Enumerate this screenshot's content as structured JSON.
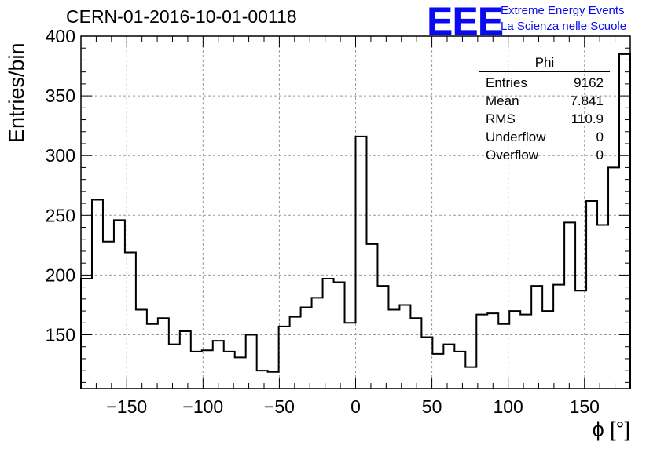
{
  "header": {
    "title": "CERN-01-2016-10-01-00118",
    "logo": "EEE",
    "logo_line1": "Extreme Energy Events",
    "logo_line2": "La Scienza nelle Scuole"
  },
  "stats_box": {
    "title": "Phi",
    "rows": [
      {
        "label": "Entries",
        "value": "9162"
      },
      {
        "label": "Mean",
        "value": "7.841"
      },
      {
        "label": "RMS",
        "value": "110.9"
      },
      {
        "label": "Underflow",
        "value": "0"
      },
      {
        "label": "Overflow",
        "value": "0"
      }
    ]
  },
  "chart_data": {
    "type": "bar",
    "style": "step-histogram",
    "xlabel": "ϕ [°]",
    "ylabel": "Entries/bin",
    "xlim": [
      -180,
      180
    ],
    "ylim": [
      105,
      400
    ],
    "bin_edges": [
      -180,
      -172.8,
      -165.6,
      -158.4,
      -151.2,
      -144,
      -136.8,
      -129.6,
      -122.4,
      -115.2,
      -108,
      -100.8,
      -93.6,
      -86.4,
      -79.2,
      -72,
      -64.8,
      -57.6,
      -50.4,
      -43.2,
      -36,
      -28.8,
      -21.6,
      -14.4,
      -7.2,
      0,
      7.2,
      14.4,
      21.6,
      28.8,
      36,
      43.2,
      50.4,
      57.6,
      64.8,
      72,
      79.2,
      86.4,
      93.6,
      100.8,
      108,
      115.2,
      122.4,
      129.6,
      136.8,
      144,
      151.2,
      158.4,
      165.6,
      172.8,
      180
    ],
    "values": [
      197,
      263,
      228,
      246,
      219,
      171,
      159,
      164,
      142,
      153,
      136,
      137,
      145,
      136,
      131,
      150,
      120,
      119,
      157,
      165,
      173,
      181,
      197,
      194,
      160,
      316,
      226,
      191,
      171,
      175,
      164,
      148,
      134,
      142,
      136,
      123,
      167,
      168,
      159,
      170,
      167,
      191,
      170,
      192,
      244,
      187,
      262,
      242,
      290,
      385
    ],
    "xticks": [
      "−150",
      "−100",
      "−50",
      "0",
      "50",
      "100",
      "150"
    ],
    "xtick_values": [
      -150,
      -100,
      -50,
      0,
      50,
      100,
      150
    ],
    "yticks": [
      "150",
      "200",
      "250",
      "300",
      "350",
      "400"
    ],
    "ytick_values": [
      150,
      200,
      250,
      300,
      350,
      400
    ],
    "grid": true,
    "line_color": "#000000"
  }
}
